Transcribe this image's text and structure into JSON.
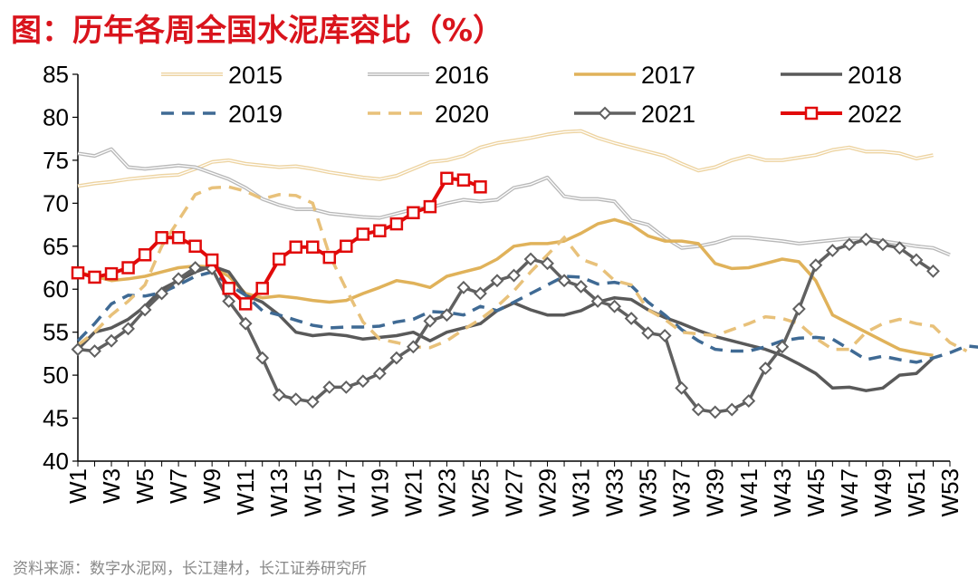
{
  "title": "图：历年各周全国水泥库容比（%）",
  "source": "资料来源：数字水泥网，长江建材，长江证券研究所",
  "chart_data": {
    "type": "line",
    "title": "图：历年各周全国水泥库容比（%）",
    "ylim": [
      40,
      85
    ],
    "y_ticks": [
      "40",
      "45",
      "50",
      "55",
      "60",
      "65",
      "70",
      "75",
      "80",
      "85"
    ],
    "x_tick_labels": [
      "W1",
      "W3",
      "W5",
      "W7",
      "W9",
      "W11",
      "W13",
      "W15",
      "W17",
      "W19",
      "W21",
      "W23",
      "W25",
      "W27",
      "W29",
      "W31",
      "W33",
      "W35",
      "W37",
      "W39",
      "W41",
      "W43",
      "W45",
      "W47",
      "W49",
      "W51",
      "W53"
    ],
    "grid": false,
    "legend_position": "top",
    "series": [
      {
        "name": "2015",
        "color": "#edd3a0",
        "style": "double",
        "values": [
          72,
          72.3,
          72.5,
          72.8,
          73,
          73.2,
          73.3,
          74,
          74.8,
          75,
          74.6,
          74.4,
          74.2,
          74.3,
          74,
          73.6,
          73.3,
          73,
          72.8,
          73.2,
          74,
          74.8,
          75,
          75.5,
          76.5,
          77,
          77.3,
          77.6,
          78,
          78.3,
          78.4,
          77.6,
          77,
          76.5,
          76,
          75.5,
          74.6,
          73.8,
          74.2,
          75,
          75.5,
          75,
          75,
          75.3,
          75.6,
          76.2,
          76.5,
          76,
          76,
          75.8,
          75.2,
          75.6
        ]
      },
      {
        "name": "2016",
        "color": "#b8b8b8",
        "style": "double",
        "values": [
          75.8,
          75.5,
          76.3,
          74.2,
          74,
          74.2,
          74.4,
          74.2,
          73.5,
          72.8,
          71.8,
          70.5,
          69.8,
          69.3,
          69.3,
          68.8,
          68.6,
          68.4,
          68.3,
          68.8,
          69.3,
          69.5,
          70,
          70.4,
          70.2,
          70.4,
          71.8,
          72.2,
          73,
          70.8,
          70.5,
          70.5,
          70.2,
          68,
          67.5,
          66,
          64.8,
          65,
          65.4,
          66,
          66,
          65.8,
          65.6,
          65.3,
          65.5,
          65.7,
          65.9,
          65.9,
          65.6,
          65.3,
          65,
          64.8,
          64
        ]
      },
      {
        "name": "2017",
        "color": "#e0b25a",
        "style": "solid",
        "values": [
          62,
          61.5,
          61,
          61.2,
          61.5,
          62,
          62.5,
          62.7,
          62.6,
          61.5,
          59.5,
          59,
          59.2,
          59,
          58.7,
          58.5,
          58.7,
          59.5,
          60.2,
          61,
          60.7,
          60.2,
          61.5,
          62,
          62.5,
          63.5,
          65,
          65.3,
          65.3,
          65.6,
          66.5,
          67.6,
          68.1,
          67.5,
          66.2,
          65.6,
          65.6,
          65.3,
          63,
          62.4,
          62.5,
          63,
          63.5,
          63.2,
          61,
          57,
          56,
          55,
          54,
          53,
          52.6,
          52.3
        ]
      },
      {
        "name": "2018",
        "color": "#595959",
        "style": "solid",
        "values": [
          53,
          55,
          55.5,
          56.5,
          58,
          60,
          61,
          62,
          62.7,
          62,
          59.3,
          58.5,
          57,
          55,
          54.6,
          54.8,
          54.6,
          54.2,
          54.4,
          54.6,
          55,
          54,
          55,
          55.5,
          56,
          57.5,
          58.4,
          57.6,
          57,
          57,
          57.5,
          58.5,
          59,
          58.8,
          57.6,
          56.7,
          56,
          55.2,
          54.5,
          54,
          53.5,
          53,
          52.3,
          51.3,
          50.2,
          48.5,
          48.6,
          48.2,
          48.5,
          50,
          50.2,
          52
        ]
      },
      {
        "name": "2019",
        "color": "#3f6a94",
        "style": "dashed",
        "values": [
          54,
          56,
          58.3,
          59.3,
          59.2,
          59.6,
          60.5,
          61.5,
          62,
          60.5,
          59.3,
          57.5,
          57,
          56.4,
          55.8,
          55.5,
          55.6,
          55.6,
          55.7,
          56.2,
          56.5,
          57.4,
          57.3,
          57,
          58,
          57.5,
          58.5,
          59.5,
          60.5,
          61.5,
          61.4,
          60.6,
          60.8,
          60.4,
          58.5,
          57,
          55.3,
          54,
          53,
          52.8,
          52.8,
          53.3,
          54,
          54.3,
          54.4,
          54.2,
          53,
          51.8,
          52.2,
          51.8,
          51.5,
          52,
          52.6,
          53.4,
          53.2
        ]
      },
      {
        "name": "2020",
        "color": "#e8c17a",
        "style": "dashed",
        "values": [
          53.5,
          55,
          57,
          58.6,
          60.5,
          65,
          68,
          71,
          71.8,
          71.9,
          71.4,
          70.5,
          71,
          70.9,
          70,
          64,
          60,
          56.2,
          54.2,
          53.8,
          53.3,
          53.2,
          54,
          55.3,
          56.5,
          58,
          59.8,
          62,
          64,
          66,
          63.5,
          62.8,
          61,
          60.5,
          57.6,
          56.5,
          55,
          54.8,
          54.6,
          55.3,
          56,
          56.8,
          56.6,
          56,
          54.3,
          53,
          53,
          55,
          56,
          56.5,
          56,
          55.7,
          53.8,
          52.8
        ]
      },
      {
        "name": "2021",
        "color": "#606060",
        "style": "marker-diamond",
        "values": [
          53,
          52.8,
          54,
          55.4,
          57.6,
          59.5,
          61.2,
          62.5,
          62.4,
          58.6,
          56,
          52,
          47.7,
          47.2,
          46.9,
          48.6,
          48.6,
          49.3,
          50.2,
          52,
          53.3,
          56.3,
          57,
          60.2,
          59.5,
          61,
          61.6,
          63.5,
          63,
          61,
          60.3,
          58.6,
          58,
          56.6,
          54.9,
          54.6,
          48.5,
          46,
          45.7,
          46,
          47,
          50.8,
          53.3,
          57.7,
          62.8,
          64.5,
          65.2,
          65.8,
          65.2,
          64.8,
          63.4,
          62.1
        ]
      },
      {
        "name": "2022",
        "color": "#e10a0a",
        "style": "marker-square",
        "values": [
          61.9,
          61.4,
          61.8,
          62.5,
          64,
          66,
          66,
          65,
          63.4,
          60.1,
          58.3,
          60.1,
          63.5,
          64.9,
          64.9,
          63.7,
          65,
          66.4,
          66.8,
          67.6,
          68.9,
          69.6,
          72.9,
          72.7,
          71.9
        ]
      }
    ]
  }
}
